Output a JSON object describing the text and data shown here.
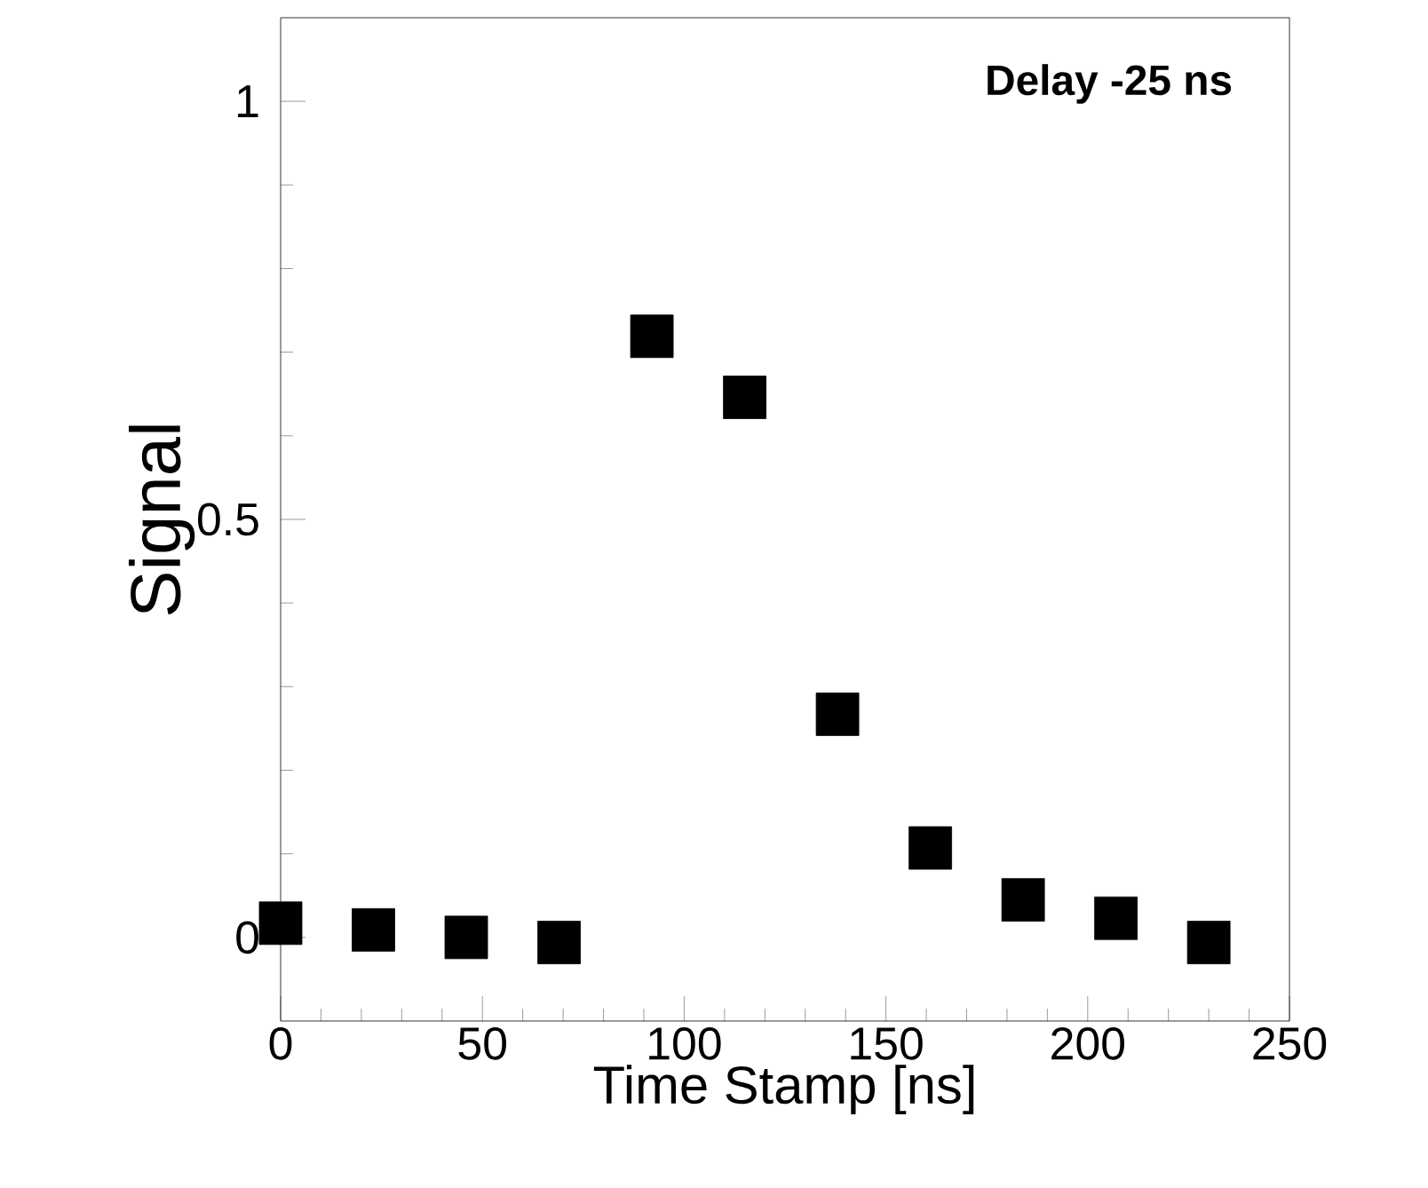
{
  "chart_data": {
    "type": "scatter",
    "xlabel": "Time Stamp [ns]",
    "ylabel": "Signal",
    "annotations": [
      "**Delay -25 ns**"
    ],
    "x": [
      0,
      23,
      46,
      69,
      92,
      115,
      138,
      161,
      184,
      207,
      230
    ],
    "values": [
      0.017,
      0.009,
      0,
      -0.006,
      0.719,
      0.646,
      0.267,
      0.107,
      0.045,
      0.023,
      -0.006
    ],
    "color": "#000000",
    "marker": "square",
    "xlim": [
      0,
      250
    ],
    "ylim": [
      -0.1,
      1.1
    ],
    "xticks": [
      0,
      50,
      100,
      150,
      200,
      250
    ],
    "yticks": [
      0,
      0.5,
      1
    ],
    "grid": false
  }
}
